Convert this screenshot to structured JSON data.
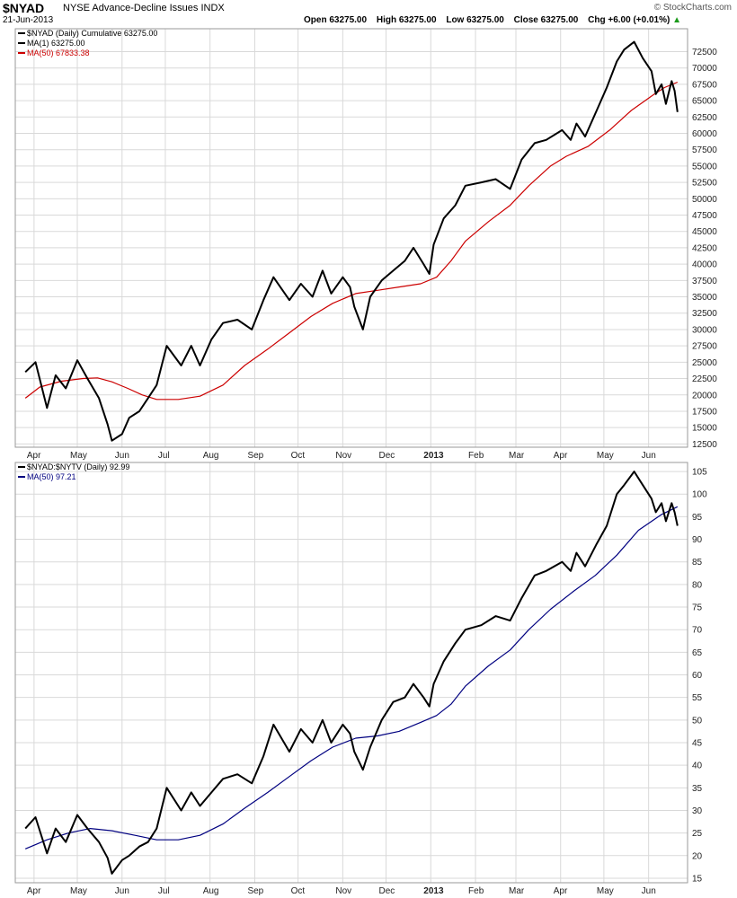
{
  "header": {
    "symbol": "$NYAD",
    "name": "NYSE Advance-Decline Issues",
    "exchange": "INDX",
    "date": "21-Jun-2013",
    "brand": "© StockCharts.com",
    "open_label": "Open",
    "open": "63275.00",
    "high_label": "High",
    "high": "63275.00",
    "low_label": "Low",
    "low": "63275.00",
    "close_label": "Close",
    "close": "63275.00",
    "chg_label": "Chg",
    "chg": "+6.00 (+0.01%)"
  },
  "x_labels": [
    "Apr",
    "May",
    "Jun",
    "Jul",
    "Aug",
    "Sep",
    "Oct",
    "Nov",
    "Dec",
    "2013",
    "Feb",
    "Mar",
    "Apr",
    "May",
    "Jun"
  ],
  "chart_data": [
    {
      "type": "line",
      "legend": [
        {
          "text": "$NYAD (Daily) Cumulative 63275.00",
          "color": "#000000"
        },
        {
          "text": "MA(1) 63275.00",
          "color": "#000000"
        },
        {
          "text": "MA(50) 67833.38",
          "color": "#cc0000"
        }
      ],
      "ylim": [
        12000,
        76000
      ],
      "yticks": [
        12500,
        15000,
        17500,
        20000,
        22500,
        25000,
        27500,
        30000,
        32500,
        35000,
        37500,
        40000,
        42500,
        45000,
        47500,
        50000,
        52500,
        55000,
        57500,
        60000,
        62500,
        65000,
        67500,
        70000,
        72500
      ],
      "series": [
        {
          "name": "$NYAD (Daily) Cumulative",
          "color": "#000000",
          "values": [
            {
              "x": "2012-03-26",
              "y": 23500
            },
            {
              "x": "2012-04-02",
              "y": 25000
            },
            {
              "x": "2012-04-10",
              "y": 18000
            },
            {
              "x": "2012-04-16",
              "y": 23000
            },
            {
              "x": "2012-04-23",
              "y": 21000
            },
            {
              "x": "2012-05-01",
              "y": 25300
            },
            {
              "x": "2012-05-08",
              "y": 22500
            },
            {
              "x": "2012-05-16",
              "y": 19500
            },
            {
              "x": "2012-05-22",
              "y": 15500
            },
            {
              "x": "2012-05-25",
              "y": 13000
            },
            {
              "x": "2012-06-01",
              "y": 14000
            },
            {
              "x": "2012-06-06",
              "y": 16500
            },
            {
              "x": "2012-06-13",
              "y": 17500
            },
            {
              "x": "2012-06-19",
              "y": 19500
            },
            {
              "x": "2012-06-25",
              "y": 21500
            },
            {
              "x": "2012-07-02",
              "y": 27500
            },
            {
              "x": "2012-07-12",
              "y": 24500
            },
            {
              "x": "2012-07-19",
              "y": 27500
            },
            {
              "x": "2012-07-25",
              "y": 24500
            },
            {
              "x": "2012-08-02",
              "y": 28500
            },
            {
              "x": "2012-08-10",
              "y": 31000
            },
            {
              "x": "2012-08-20",
              "y": 31500
            },
            {
              "x": "2012-08-30",
              "y": 30000
            },
            {
              "x": "2012-09-07",
              "y": 34500
            },
            {
              "x": "2012-09-14",
              "y": 38000
            },
            {
              "x": "2012-09-25",
              "y": 34500
            },
            {
              "x": "2012-10-03",
              "y": 37000
            },
            {
              "x": "2012-10-11",
              "y": 35000
            },
            {
              "x": "2012-10-18",
              "y": 39000
            },
            {
              "x": "2012-10-24",
              "y": 35500
            },
            {
              "x": "2012-11-01",
              "y": 38000
            },
            {
              "x": "2012-11-06",
              "y": 36500
            },
            {
              "x": "2012-11-09",
              "y": 33500
            },
            {
              "x": "2012-11-15",
              "y": 30000
            },
            {
              "x": "2012-11-20",
              "y": 35000
            },
            {
              "x": "2012-11-28",
              "y": 37500
            },
            {
              "x": "2012-12-06",
              "y": 39000
            },
            {
              "x": "2012-12-14",
              "y": 40500
            },
            {
              "x": "2012-12-20",
              "y": 42500
            },
            {
              "x": "2012-12-27",
              "y": 40000
            },
            {
              "x": "2012-12-31",
              "y": 38500
            },
            {
              "x": "2013-01-03",
              "y": 43000
            },
            {
              "x": "2013-01-10",
              "y": 47000
            },
            {
              "x": "2013-01-18",
              "y": 49000
            },
            {
              "x": "2013-01-25",
              "y": 52000
            },
            {
              "x": "2013-02-05",
              "y": 52500
            },
            {
              "x": "2013-02-15",
              "y": 53000
            },
            {
              "x": "2013-02-25",
              "y": 51500
            },
            {
              "x": "2013-03-05",
              "y": 56000
            },
            {
              "x": "2013-03-14",
              "y": 58500
            },
            {
              "x": "2013-03-22",
              "y": 59000
            },
            {
              "x": "2013-04-02",
              "y": 60500
            },
            {
              "x": "2013-04-08",
              "y": 59000
            },
            {
              "x": "2013-04-12",
              "y": 61500
            },
            {
              "x": "2013-04-18",
              "y": 59500
            },
            {
              "x": "2013-04-26",
              "y": 63500
            },
            {
              "x": "2013-05-03",
              "y": 67000
            },
            {
              "x": "2013-05-10",
              "y": 71000
            },
            {
              "x": "2013-05-15",
              "y": 72800
            },
            {
              "x": "2013-05-22",
              "y": 74000
            },
            {
              "x": "2013-05-28",
              "y": 71500
            },
            {
              "x": "2013-06-03",
              "y": 69500
            },
            {
              "x": "2013-06-06",
              "y": 66000
            },
            {
              "x": "2013-06-10",
              "y": 67500
            },
            {
              "x": "2013-06-13",
              "y": 64500
            },
            {
              "x": "2013-06-17",
              "y": 68000
            },
            {
              "x": "2013-06-19",
              "y": 66500
            },
            {
              "x": "2013-06-21",
              "y": 63275
            }
          ]
        },
        {
          "name": "MA(50)",
          "color": "#cc0000",
          "values": [
            {
              "x": "2012-03-26",
              "y": 19500
            },
            {
              "x": "2012-04-05",
              "y": 21200
            },
            {
              "x": "2012-04-20",
              "y": 22100
            },
            {
              "x": "2012-05-05",
              "y": 22500
            },
            {
              "x": "2012-05-15",
              "y": 22600
            },
            {
              "x": "2012-05-25",
              "y": 22000
            },
            {
              "x": "2012-06-05",
              "y": 21000
            },
            {
              "x": "2012-06-15",
              "y": 20000
            },
            {
              "x": "2012-06-25",
              "y": 19300
            },
            {
              "x": "2012-07-10",
              "y": 19300
            },
            {
              "x": "2012-07-25",
              "y": 19800
            },
            {
              "x": "2012-08-10",
              "y": 21500
            },
            {
              "x": "2012-08-25",
              "y": 24500
            },
            {
              "x": "2012-09-10",
              "y": 27000
            },
            {
              "x": "2012-09-25",
              "y": 29500
            },
            {
              "x": "2012-10-10",
              "y": 32000
            },
            {
              "x": "2012-10-25",
              "y": 34000
            },
            {
              "x": "2012-11-10",
              "y": 35500
            },
            {
              "x": "2012-11-25",
              "y": 36000
            },
            {
              "x": "2012-12-10",
              "y": 36500
            },
            {
              "x": "2012-12-25",
              "y": 37000
            },
            {
              "x": "2013-01-05",
              "y": 38000
            },
            {
              "x": "2013-01-15",
              "y": 40500
            },
            {
              "x": "2013-01-25",
              "y": 43500
            },
            {
              "x": "2013-02-10",
              "y": 46500
            },
            {
              "x": "2013-02-25",
              "y": 49000
            },
            {
              "x": "2013-03-10",
              "y": 52000
            },
            {
              "x": "2013-03-25",
              "y": 55000
            },
            {
              "x": "2013-04-05",
              "y": 56500
            },
            {
              "x": "2013-04-20",
              "y": 58000
            },
            {
              "x": "2013-05-05",
              "y": 60500
            },
            {
              "x": "2013-05-20",
              "y": 63500
            },
            {
              "x": "2013-06-05",
              "y": 66000
            },
            {
              "x": "2013-06-12",
              "y": 67000
            },
            {
              "x": "2013-06-21",
              "y": 67833
            }
          ]
        }
      ]
    },
    {
      "type": "line",
      "legend": [
        {
          "text": "$NYAD:$NYTV (Daily) 92.99",
          "color": "#000000"
        },
        {
          "text": "MA(50) 97.21",
          "color": "#000080"
        }
      ],
      "ylim": [
        14,
        107
      ],
      "yticks": [
        15,
        20,
        25,
        30,
        35,
        40,
        45,
        50,
        55,
        60,
        65,
        70,
        75,
        80,
        85,
        90,
        95,
        100,
        105
      ],
      "series": [
        {
          "name": "$NYAD:$NYTV (Daily)",
          "color": "#000000",
          "values": [
            {
              "x": "2012-03-26",
              "y": 26
            },
            {
              "x": "2012-04-02",
              "y": 28.5
            },
            {
              "x": "2012-04-10",
              "y": 20.5
            },
            {
              "x": "2012-04-16",
              "y": 26
            },
            {
              "x": "2012-04-23",
              "y": 23
            },
            {
              "x": "2012-05-01",
              "y": 29
            },
            {
              "x": "2012-05-08",
              "y": 26
            },
            {
              "x": "2012-05-16",
              "y": 23
            },
            {
              "x": "2012-05-22",
              "y": 19.5
            },
            {
              "x": "2012-05-25",
              "y": 16
            },
            {
              "x": "2012-06-01",
              "y": 19
            },
            {
              "x": "2012-06-06",
              "y": 20
            },
            {
              "x": "2012-06-13",
              "y": 22
            },
            {
              "x": "2012-06-19",
              "y": 23
            },
            {
              "x": "2012-06-25",
              "y": 26
            },
            {
              "x": "2012-07-02",
              "y": 35
            },
            {
              "x": "2012-07-12",
              "y": 30
            },
            {
              "x": "2012-07-19",
              "y": 34
            },
            {
              "x": "2012-07-25",
              "y": 31
            },
            {
              "x": "2012-08-02",
              "y": 34
            },
            {
              "x": "2012-08-10",
              "y": 37
            },
            {
              "x": "2012-08-20",
              "y": 38
            },
            {
              "x": "2012-08-30",
              "y": 36
            },
            {
              "x": "2012-09-07",
              "y": 42
            },
            {
              "x": "2012-09-14",
              "y": 49
            },
            {
              "x": "2012-09-25",
              "y": 43
            },
            {
              "x": "2012-10-03",
              "y": 48
            },
            {
              "x": "2012-10-11",
              "y": 45
            },
            {
              "x": "2012-10-18",
              "y": 50
            },
            {
              "x": "2012-10-24",
              "y": 45
            },
            {
              "x": "2012-11-01",
              "y": 49
            },
            {
              "x": "2012-11-06",
              "y": 47
            },
            {
              "x": "2012-11-09",
              "y": 43
            },
            {
              "x": "2012-11-15",
              "y": 39
            },
            {
              "x": "2012-11-20",
              "y": 44
            },
            {
              "x": "2012-11-28",
              "y": 50
            },
            {
              "x": "2012-12-06",
              "y": 54
            },
            {
              "x": "2012-12-14",
              "y": 55
            },
            {
              "x": "2012-12-20",
              "y": 58
            },
            {
              "x": "2012-12-27",
              "y": 55
            },
            {
              "x": "2012-12-31",
              "y": 53
            },
            {
              "x": "2013-01-03",
              "y": 58
            },
            {
              "x": "2013-01-10",
              "y": 63
            },
            {
              "x": "2013-01-18",
              "y": 67
            },
            {
              "x": "2013-01-25",
              "y": 70
            },
            {
              "x": "2013-02-05",
              "y": 71
            },
            {
              "x": "2013-02-15",
              "y": 73
            },
            {
              "x": "2013-02-25",
              "y": 72
            },
            {
              "x": "2013-03-05",
              "y": 77
            },
            {
              "x": "2013-03-14",
              "y": 82
            },
            {
              "x": "2013-03-22",
              "y": 83
            },
            {
              "x": "2013-04-02",
              "y": 85
            },
            {
              "x": "2013-04-08",
              "y": 83
            },
            {
              "x": "2013-04-12",
              "y": 87
            },
            {
              "x": "2013-04-18",
              "y": 84
            },
            {
              "x": "2013-04-26",
              "y": 89
            },
            {
              "x": "2013-05-03",
              "y": 93
            },
            {
              "x": "2013-05-10",
              "y": 100
            },
            {
              "x": "2013-05-15",
              "y": 102
            },
            {
              "x": "2013-05-22",
              "y": 105
            },
            {
              "x": "2013-05-28",
              "y": 102
            },
            {
              "x": "2013-06-03",
              "y": 99
            },
            {
              "x": "2013-06-06",
              "y": 96
            },
            {
              "x": "2013-06-10",
              "y": 98
            },
            {
              "x": "2013-06-13",
              "y": 94
            },
            {
              "x": "2013-06-17",
              "y": 98
            },
            {
              "x": "2013-06-19",
              "y": 96
            },
            {
              "x": "2013-06-21",
              "y": 92.99
            }
          ]
        },
        {
          "name": "MA(50)",
          "color": "#000080",
          "values": [
            {
              "x": "2012-03-26",
              "y": 21.5
            },
            {
              "x": "2012-04-10",
              "y": 23.5
            },
            {
              "x": "2012-04-25",
              "y": 25
            },
            {
              "x": "2012-05-10",
              "y": 26
            },
            {
              "x": "2012-05-25",
              "y": 25.5
            },
            {
              "x": "2012-06-10",
              "y": 24.5
            },
            {
              "x": "2012-06-25",
              "y": 23.5
            },
            {
              "x": "2012-07-10",
              "y": 23.5
            },
            {
              "x": "2012-07-25",
              "y": 24.5
            },
            {
              "x": "2012-08-10",
              "y": 27
            },
            {
              "x": "2012-08-25",
              "y": 30.5
            },
            {
              "x": "2012-09-10",
              "y": 34
            },
            {
              "x": "2012-09-25",
              "y": 37.5
            },
            {
              "x": "2012-10-10",
              "y": 41
            },
            {
              "x": "2012-10-25",
              "y": 44
            },
            {
              "x": "2012-11-10",
              "y": 46
            },
            {
              "x": "2012-11-25",
              "y": 46.5
            },
            {
              "x": "2012-12-10",
              "y": 47.5
            },
            {
              "x": "2012-12-25",
              "y": 49.5
            },
            {
              "x": "2013-01-05",
              "y": 51
            },
            {
              "x": "2013-01-15",
              "y": 53.5
            },
            {
              "x": "2013-01-25",
              "y": 57.5
            },
            {
              "x": "2013-02-10",
              "y": 62
            },
            {
              "x": "2013-02-25",
              "y": 65.5
            },
            {
              "x": "2013-03-10",
              "y": 70
            },
            {
              "x": "2013-03-25",
              "y": 74.5
            },
            {
              "x": "2013-04-10",
              "y": 78.5
            },
            {
              "x": "2013-04-25",
              "y": 82
            },
            {
              "x": "2013-05-10",
              "y": 86.5
            },
            {
              "x": "2013-05-25",
              "y": 92
            },
            {
              "x": "2013-06-10",
              "y": 95.5
            },
            {
              "x": "2013-06-21",
              "y": 97.21
            }
          ]
        }
      ]
    }
  ]
}
